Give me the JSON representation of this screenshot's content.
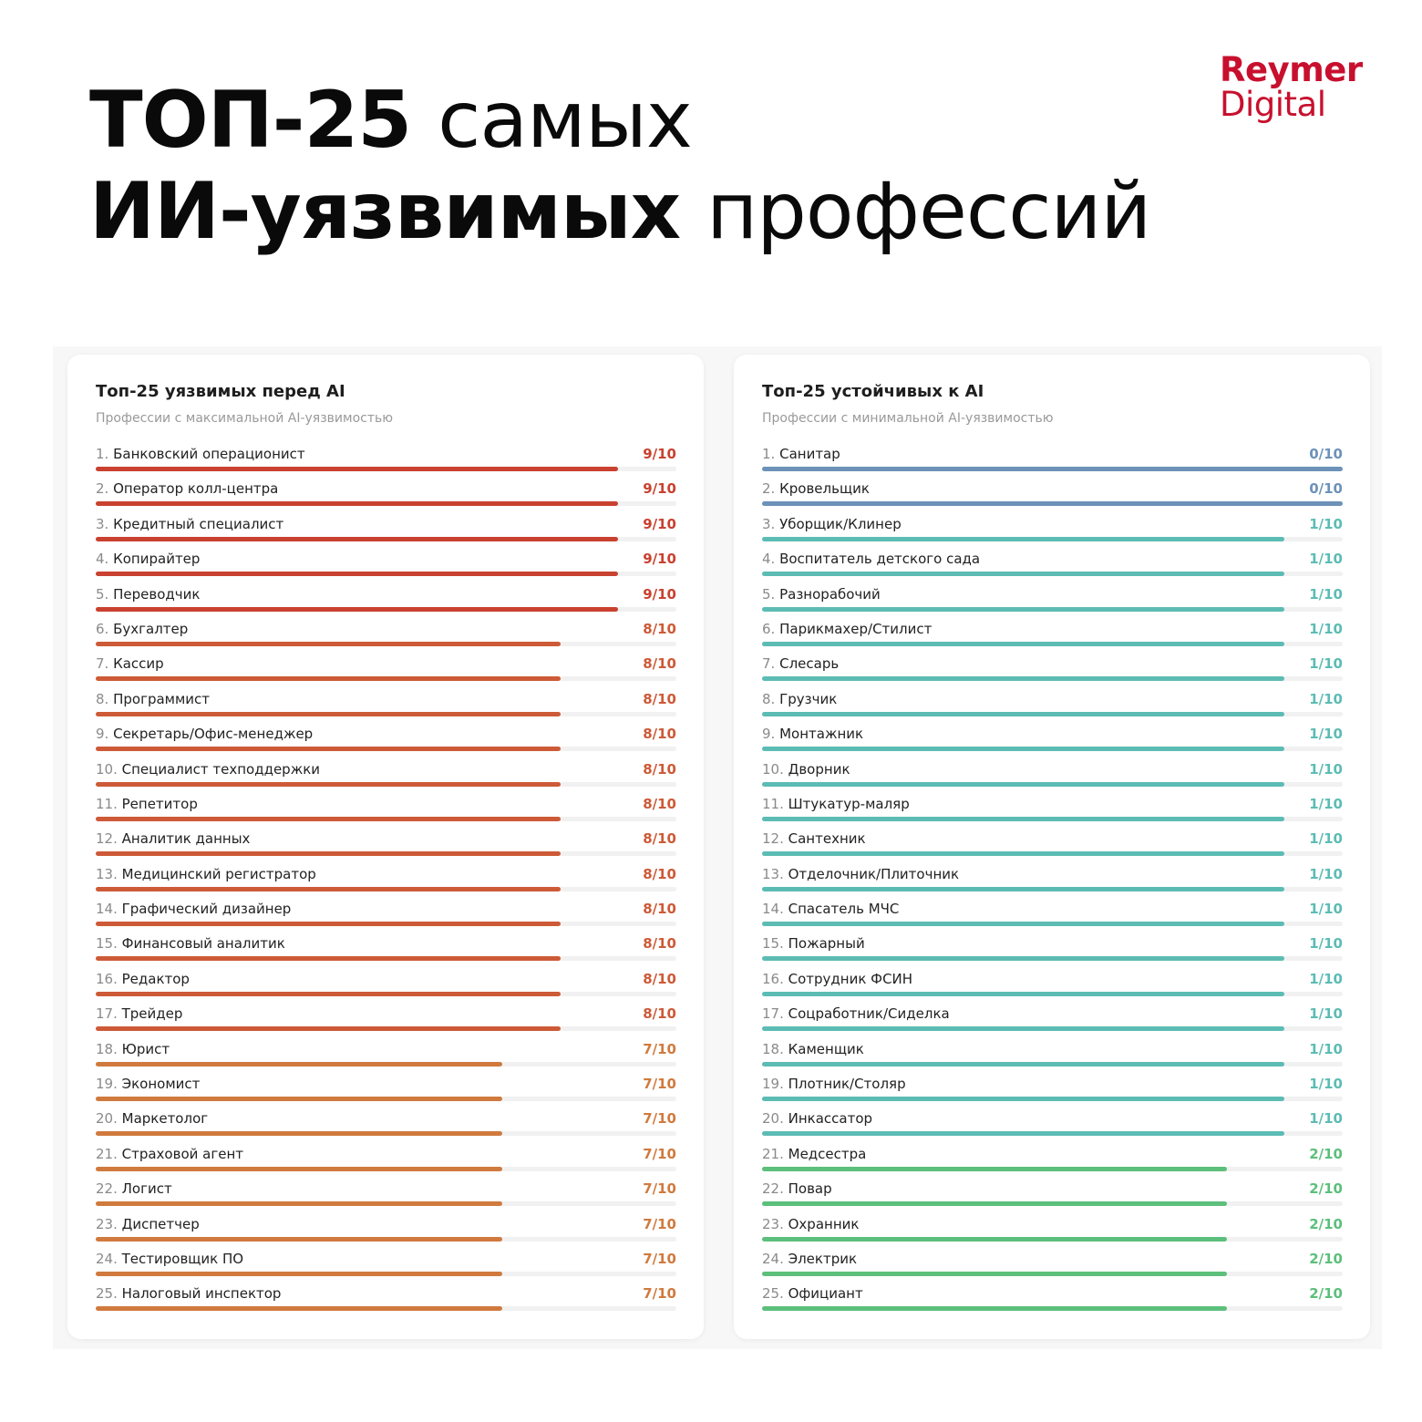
{
  "headline": {
    "line1_bold": "ТОП-25",
    "line1_regular": "самых",
    "line2_bold": "ИИ-уязвимых",
    "line2_regular": "профессий"
  },
  "logo": {
    "line1": "Reymer",
    "line2": "Digital",
    "color": "#c8102e"
  },
  "chart_data": [
    {
      "type": "bar",
      "orientation": "horizontal",
      "title": "Топ-25 уязвимых перед AI",
      "subtitle": "Профессии с максимальной AI-уязвимостью",
      "xlim": [
        0,
        10
      ],
      "value_suffix": "/10",
      "colors": {
        "9": "#c9412f",
        "8": "#cd5a37",
        "7": "#d07a3e"
      },
      "categories": [
        "Банковский операционист",
        "Оператор колл-центра",
        "Кредитный специалист",
        "Копирайтер",
        "Переводчик",
        "Бухгалтер",
        "Кассир",
        "Программист",
        "Секретарь/Офис-менеджер",
        "Специалист техподдержки",
        "Репетитор",
        "Аналитик данных",
        "Медицинский регистратор",
        "Графический дизайнер",
        "Финансовый аналитик",
        "Редактор",
        "Трейдер",
        "Юрист",
        "Экономист",
        "Маркетолог",
        "Страховой агент",
        "Логист",
        "Диспетчер",
        "Тестировщик ПО",
        "Налоговый инспектор"
      ],
      "values": [
        9,
        9,
        9,
        9,
        9,
        8,
        8,
        8,
        8,
        8,
        8,
        8,
        8,
        8,
        8,
        8,
        8,
        7,
        7,
        7,
        7,
        7,
        7,
        7,
        7
      ]
    },
    {
      "type": "bar",
      "orientation": "horizontal",
      "title": "Топ-25 устойчивых к AI",
      "subtitle": "Профессии с минимальной AI-уязвимостью",
      "xlim": [
        0,
        10
      ],
      "value_suffix": "/10",
      "colors": {
        "0": "#6d92b8",
        "1": "#5cbcb4",
        "2": "#5cbf7b"
      },
      "categories": [
        "Санитар",
        "Кровельщик",
        "Уборщик/Клинер",
        "Воспитатель детского сада",
        "Разнорабочий",
        "Парикмахер/Стилист",
        "Слесарь",
        "Грузчик",
        "Монтажник",
        "Дворник",
        "Штукатур-маляр",
        "Сантехник",
        "Отделочник/Плиточник",
        "Спасатель МЧС",
        "Пожарный",
        "Сотрудник ФСИН",
        "Соцработник/Сиделка",
        "Каменщик",
        "Плотник/Столяр",
        "Инкассатор",
        "Медсестра",
        "Повар",
        "Охранник",
        "Электрик",
        "Официант"
      ],
      "values": [
        0,
        0,
        1,
        1,
        1,
        1,
        1,
        1,
        1,
        1,
        1,
        1,
        1,
        1,
        1,
        1,
        1,
        1,
        1,
        1,
        2,
        2,
        2,
        2,
        2
      ]
    }
  ]
}
